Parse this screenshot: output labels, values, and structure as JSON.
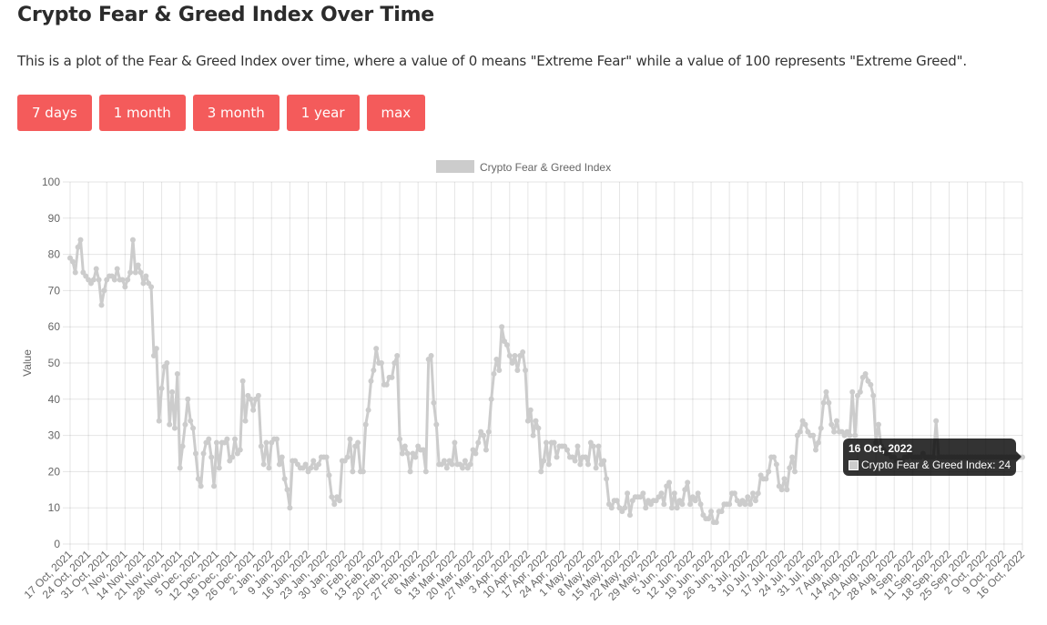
{
  "page": {
    "title": "Crypto Fear & Greed Index Over Time",
    "description": "This is a plot of the Fear & Greed Index over time, where a value of 0 means \"Extreme Fear\" while a value of 100 represents \"Extreme Greed\"."
  },
  "buttons": [
    "7 days",
    "1 month",
    "3 month",
    "1 year",
    "max"
  ],
  "colors": {
    "button": "#f45b5b",
    "series": "#cccccc"
  },
  "tooltip": {
    "title": "16 Oct, 2022",
    "label": "Crypto Fear & Greed Index: 24"
  },
  "chart_data": {
    "type": "line",
    "legend": [
      "Crypto Fear & Greed Index"
    ],
    "legend_position": "top",
    "ylabel": "Value",
    "ylim": [
      0,
      100
    ],
    "y_ticks": [
      0,
      10,
      20,
      30,
      40,
      50,
      60,
      70,
      80,
      90,
      100
    ],
    "grid": true,
    "x_range": [
      "17 Oct, 2021",
      "16 Oct, 2022"
    ],
    "x_tick_labels": [
      "17 Oct, 2021",
      "24 Oct, 2021",
      "31 Oct, 2021",
      "7 Nov, 2021",
      "14 Nov, 2021",
      "21 Nov, 2021",
      "28 Nov, 2021",
      "5 Dec, 2021",
      "12 Dec, 2021",
      "19 Dec, 2021",
      "26 Dec, 2021",
      "2 Jan, 2022",
      "9 Jan, 2022",
      "16 Jan, 2022",
      "23 Jan, 2022",
      "30 Jan, 2022",
      "6 Feb, 2022",
      "13 Feb, 2022",
      "20 Feb, 2022",
      "27 Feb, 2022",
      "6 Mar, 2022",
      "13 Mar, 2022",
      "20 Mar, 2022",
      "27 Mar, 2022",
      "3 Apr, 2022",
      "10 Apr, 2022",
      "17 Apr, 2022",
      "24 Apr, 2022",
      "1 May, 2022",
      "8 May, 2022",
      "15 May, 2022",
      "22 May, 2022",
      "29 May, 2022",
      "5 Jun, 2022",
      "12 Jun, 2022",
      "19 Jun, 2022",
      "26 Jun, 2022",
      "3 Jul, 2022",
      "10 Jul, 2022",
      "17 Jul, 2022",
      "24 Jul, 2022",
      "31 Jul, 2022",
      "7 Aug, 2022",
      "14 Aug, 2022",
      "21 Aug, 2022",
      "28 Aug, 2022",
      "4 Sep, 2022",
      "11 Sep, 2022",
      "18 Sep, 2022",
      "25 Sep, 2022",
      "2 Oct, 2022",
      "9 Oct, 2022",
      "16 Oct, 2022"
    ],
    "series": [
      {
        "name": "Crypto Fear & Greed Index",
        "color": "#cccccc",
        "weekly_values": [
          [
            79,
            78,
            75,
            82,
            84,
            75,
            74
          ],
          [
            73,
            72,
            73,
            76,
            73,
            66,
            70
          ],
          [
            73,
            74,
            74,
            73,
            76,
            73,
            73
          ],
          [
            71,
            73,
            75,
            84,
            75,
            77,
            75
          ],
          [
            72,
            74,
            72,
            71,
            52,
            54,
            34
          ],
          [
            43,
            49,
            50,
            33,
            42,
            32,
            47
          ],
          [
            21,
            27,
            33,
            40,
            34,
            32,
            25
          ],
          [
            18,
            16,
            25,
            28,
            29,
            24,
            16
          ],
          [
            28,
            21,
            28,
            28,
            29,
            23,
            24
          ],
          [
            29,
            25,
            26,
            45,
            34,
            41,
            40
          ],
          [
            37,
            40,
            41,
            27,
            22,
            28,
            21
          ],
          [
            28,
            29,
            29,
            22,
            24,
            18,
            15
          ],
          [
            10,
            23,
            23,
            22,
            21,
            21,
            22
          ],
          [
            20,
            21,
            23,
            21,
            22,
            24,
            24
          ],
          [
            24,
            19,
            13,
            11,
            13,
            12,
            23
          ],
          [
            23,
            24,
            29,
            20,
            27,
            28,
            20
          ],
          [
            20,
            33,
            37,
            45,
            48,
            54,
            50
          ],
          [
            50,
            44,
            44,
            46,
            46,
            50,
            52
          ],
          [
            29,
            25,
            27,
            25,
            20,
            25,
            24
          ],
          [
            27,
            26,
            26,
            20,
            51,
            52,
            39
          ],
          [
            33,
            22,
            22,
            23,
            21,
            23,
            22
          ],
          [
            28,
            22,
            22,
            21,
            23,
            21,
            22
          ],
          [
            26,
            25,
            28,
            31,
            30,
            26,
            31
          ],
          [
            40,
            47,
            51,
            48,
            60,
            56,
            55
          ],
          [
            52,
            50,
            52,
            48,
            52,
            53,
            48
          ],
          [
            34,
            37,
            30,
            34,
            32,
            20,
            23
          ],
          [
            28,
            22,
            28,
            28,
            24,
            27,
            27
          ],
          [
            27,
            26,
            24,
            24,
            23,
            27,
            22
          ],
          [
            24,
            24,
            22,
            28,
            27,
            21,
            27
          ],
          [
            22,
            23,
            18,
            11,
            10,
            12,
            12
          ],
          [
            10,
            9,
            10,
            14,
            8,
            12,
            13
          ],
          [
            13,
            13,
            14,
            10,
            12,
            11,
            12
          ],
          [
            12,
            13,
            14,
            11,
            16,
            17,
            10
          ],
          [
            14,
            10,
            12,
            11,
            15,
            17,
            11
          ],
          [
            13,
            12,
            14,
            11,
            8,
            7,
            7
          ],
          [
            9,
            6,
            6,
            9,
            9,
            11,
            11
          ],
          [
            11,
            14,
            14,
            12,
            11,
            12,
            11
          ],
          [
            13,
            11,
            14,
            12,
            14,
            19,
            18
          ],
          [
            18,
            20,
            24,
            24,
            22,
            16,
            15
          ],
          [
            18,
            15,
            21,
            24,
            20,
            30,
            31
          ],
          [
            34,
            33,
            31,
            30,
            30,
            26,
            28
          ],
          [
            32,
            39,
            42,
            39,
            33,
            31,
            34
          ],
          [
            31,
            31,
            30,
            31,
            30,
            42,
            30
          ],
          [
            41,
            42,
            46,
            47,
            45,
            44,
            41
          ],
          [
            28,
            33,
            27,
            26,
            25,
            25,
            24
          ],
          [
            24,
            23,
            23,
            23,
            24,
            24,
            25
          ],
          [
            24,
            24,
            24,
            24,
            25,
            24,
            24
          ],
          [
            24,
            24,
            34,
            24,
            24,
            24,
            24
          ],
          [
            24,
            24,
            24,
            24,
            24,
            24,
            24
          ],
          [
            24,
            24,
            24,
            24,
            24,
            24,
            24
          ],
          [
            24,
            24,
            24,
            24,
            24,
            24,
            24
          ],
          [
            24,
            24,
            24,
            24,
            24,
            24,
            24
          ],
          [
            24
          ]
        ]
      }
    ],
    "highlighted_point": {
      "date": "16 Oct, 2022",
      "value": 24
    }
  }
}
